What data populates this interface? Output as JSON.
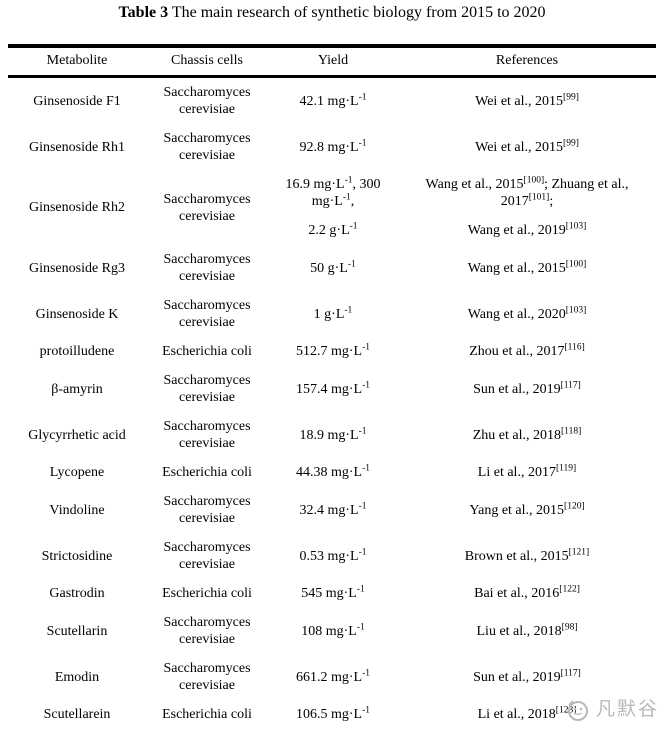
{
  "title": {
    "label": "Table 3",
    "caption": " The main research of synthetic biology from 2015 to 2020"
  },
  "table": {
    "headers": [
      "Metabolite",
      "Chassis cells",
      "Yield",
      "References"
    ],
    "rows": [
      {
        "metabolite": "Ginsenoside F1",
        "chassis": "Saccharomyces cerevisiae",
        "yield": [
          "42.1 mg·L^{-1}"
        ],
        "references": [
          "Wei et al., 2015^{[99]}"
        ]
      },
      {
        "metabolite": "Ginsenoside Rh1",
        "chassis": "Saccharomyces cerevisiae",
        "yield": [
          "92.8 mg·L^{-1}"
        ],
        "references": [
          "Wei et al., 2015^{[99]}"
        ]
      },
      {
        "metabolite": "Ginsenoside Rh2",
        "chassis": "Saccharomyces cerevisiae",
        "yield": [
          "16.9 mg·L^{-1}, 300 mg·L^{-1},",
          "2.2 g·L^{-1}"
        ],
        "references": [
          "Wang et al., 2015^{[100]}; Zhuang et al., 2017^{[101]};",
          "Wang et al., 2019^{[103]}"
        ]
      },
      {
        "metabolite": "Ginsenoside Rg3",
        "chassis": "Saccharomyces cerevisiae",
        "yield": [
          "50 g·L^{-1}"
        ],
        "references": [
          "Wang et al., 2015^{[100]}"
        ]
      },
      {
        "metabolite": "Ginsenoside K",
        "chassis": "Saccharomyces cerevisiae",
        "yield": [
          "1 g·L^{-1}"
        ],
        "references": [
          "Wang et al., 2020^{[103]}"
        ]
      },
      {
        "metabolite": "protoilludene",
        "chassis": "Escherichia coli",
        "yield": [
          "512.7 mg·L^{-1}"
        ],
        "references": [
          "Zhou et al., 2017^{[116]}"
        ]
      },
      {
        "metabolite": "β-amyrin",
        "chassis": "Saccharomyces cerevisiae",
        "yield": [
          "157.4 mg·L^{-1}"
        ],
        "references": [
          "Sun et al., 2019^{[117]}"
        ]
      },
      {
        "metabolite": "Glycyrrhetic acid",
        "chassis": "Saccharomyces cerevisiae",
        "yield": [
          "18.9 mg·L^{-1}"
        ],
        "references": [
          "Zhu et al., 2018^{[118]}"
        ]
      },
      {
        "metabolite": "Lycopene",
        "chassis": "Escherichia coli",
        "yield": [
          "44.38 mg·L^{-1}"
        ],
        "references": [
          "Li et al., 2017^{[119]}"
        ]
      },
      {
        "metabolite": "Vindoline",
        "chassis": "Saccharomyces cerevisiae",
        "yield": [
          "32.4 mg·L^{-1}"
        ],
        "references": [
          "Yang et al., 2015^{[120]}"
        ]
      },
      {
        "metabolite": "Strictosidine",
        "chassis": "Saccharomyces cerevisiae",
        "yield": [
          "0.53 mg·L^{-1}"
        ],
        "references": [
          "Brown et al., 2015^{[121]}"
        ]
      },
      {
        "metabolite": "Gastrodin",
        "chassis": "Escherichia coli",
        "yield": [
          "545 mg·L^{-1}"
        ],
        "references": [
          "Bai et al., 2016^{[122]}"
        ]
      },
      {
        "metabolite": "Scutellarin",
        "chassis": "Saccharomyces cerevisiae",
        "yield": [
          "108 mg·L^{-1}"
        ],
        "references": [
          "Liu et al., 2018^{[98]}"
        ]
      },
      {
        "metabolite": "Emodin",
        "chassis": "Saccharomyces cerevisiae",
        "yield": [
          "661.2 mg·L^{-1}"
        ],
        "references": [
          "Sun et al., 2019^{[117]}"
        ]
      },
      {
        "metabolite": "Scutellarein",
        "chassis": "Escherichia coli",
        "yield": [
          "106.5 mg·L^{-1}"
        ],
        "references": [
          "Li et al., 2018^{[123]}"
        ]
      }
    ]
  },
  "watermark": {
    "text": "凡默谷",
    "color": "#b9b9b9"
  },
  "colors": {
    "text": "#000000",
    "rule": "#000000",
    "background": "#ffffff"
  }
}
